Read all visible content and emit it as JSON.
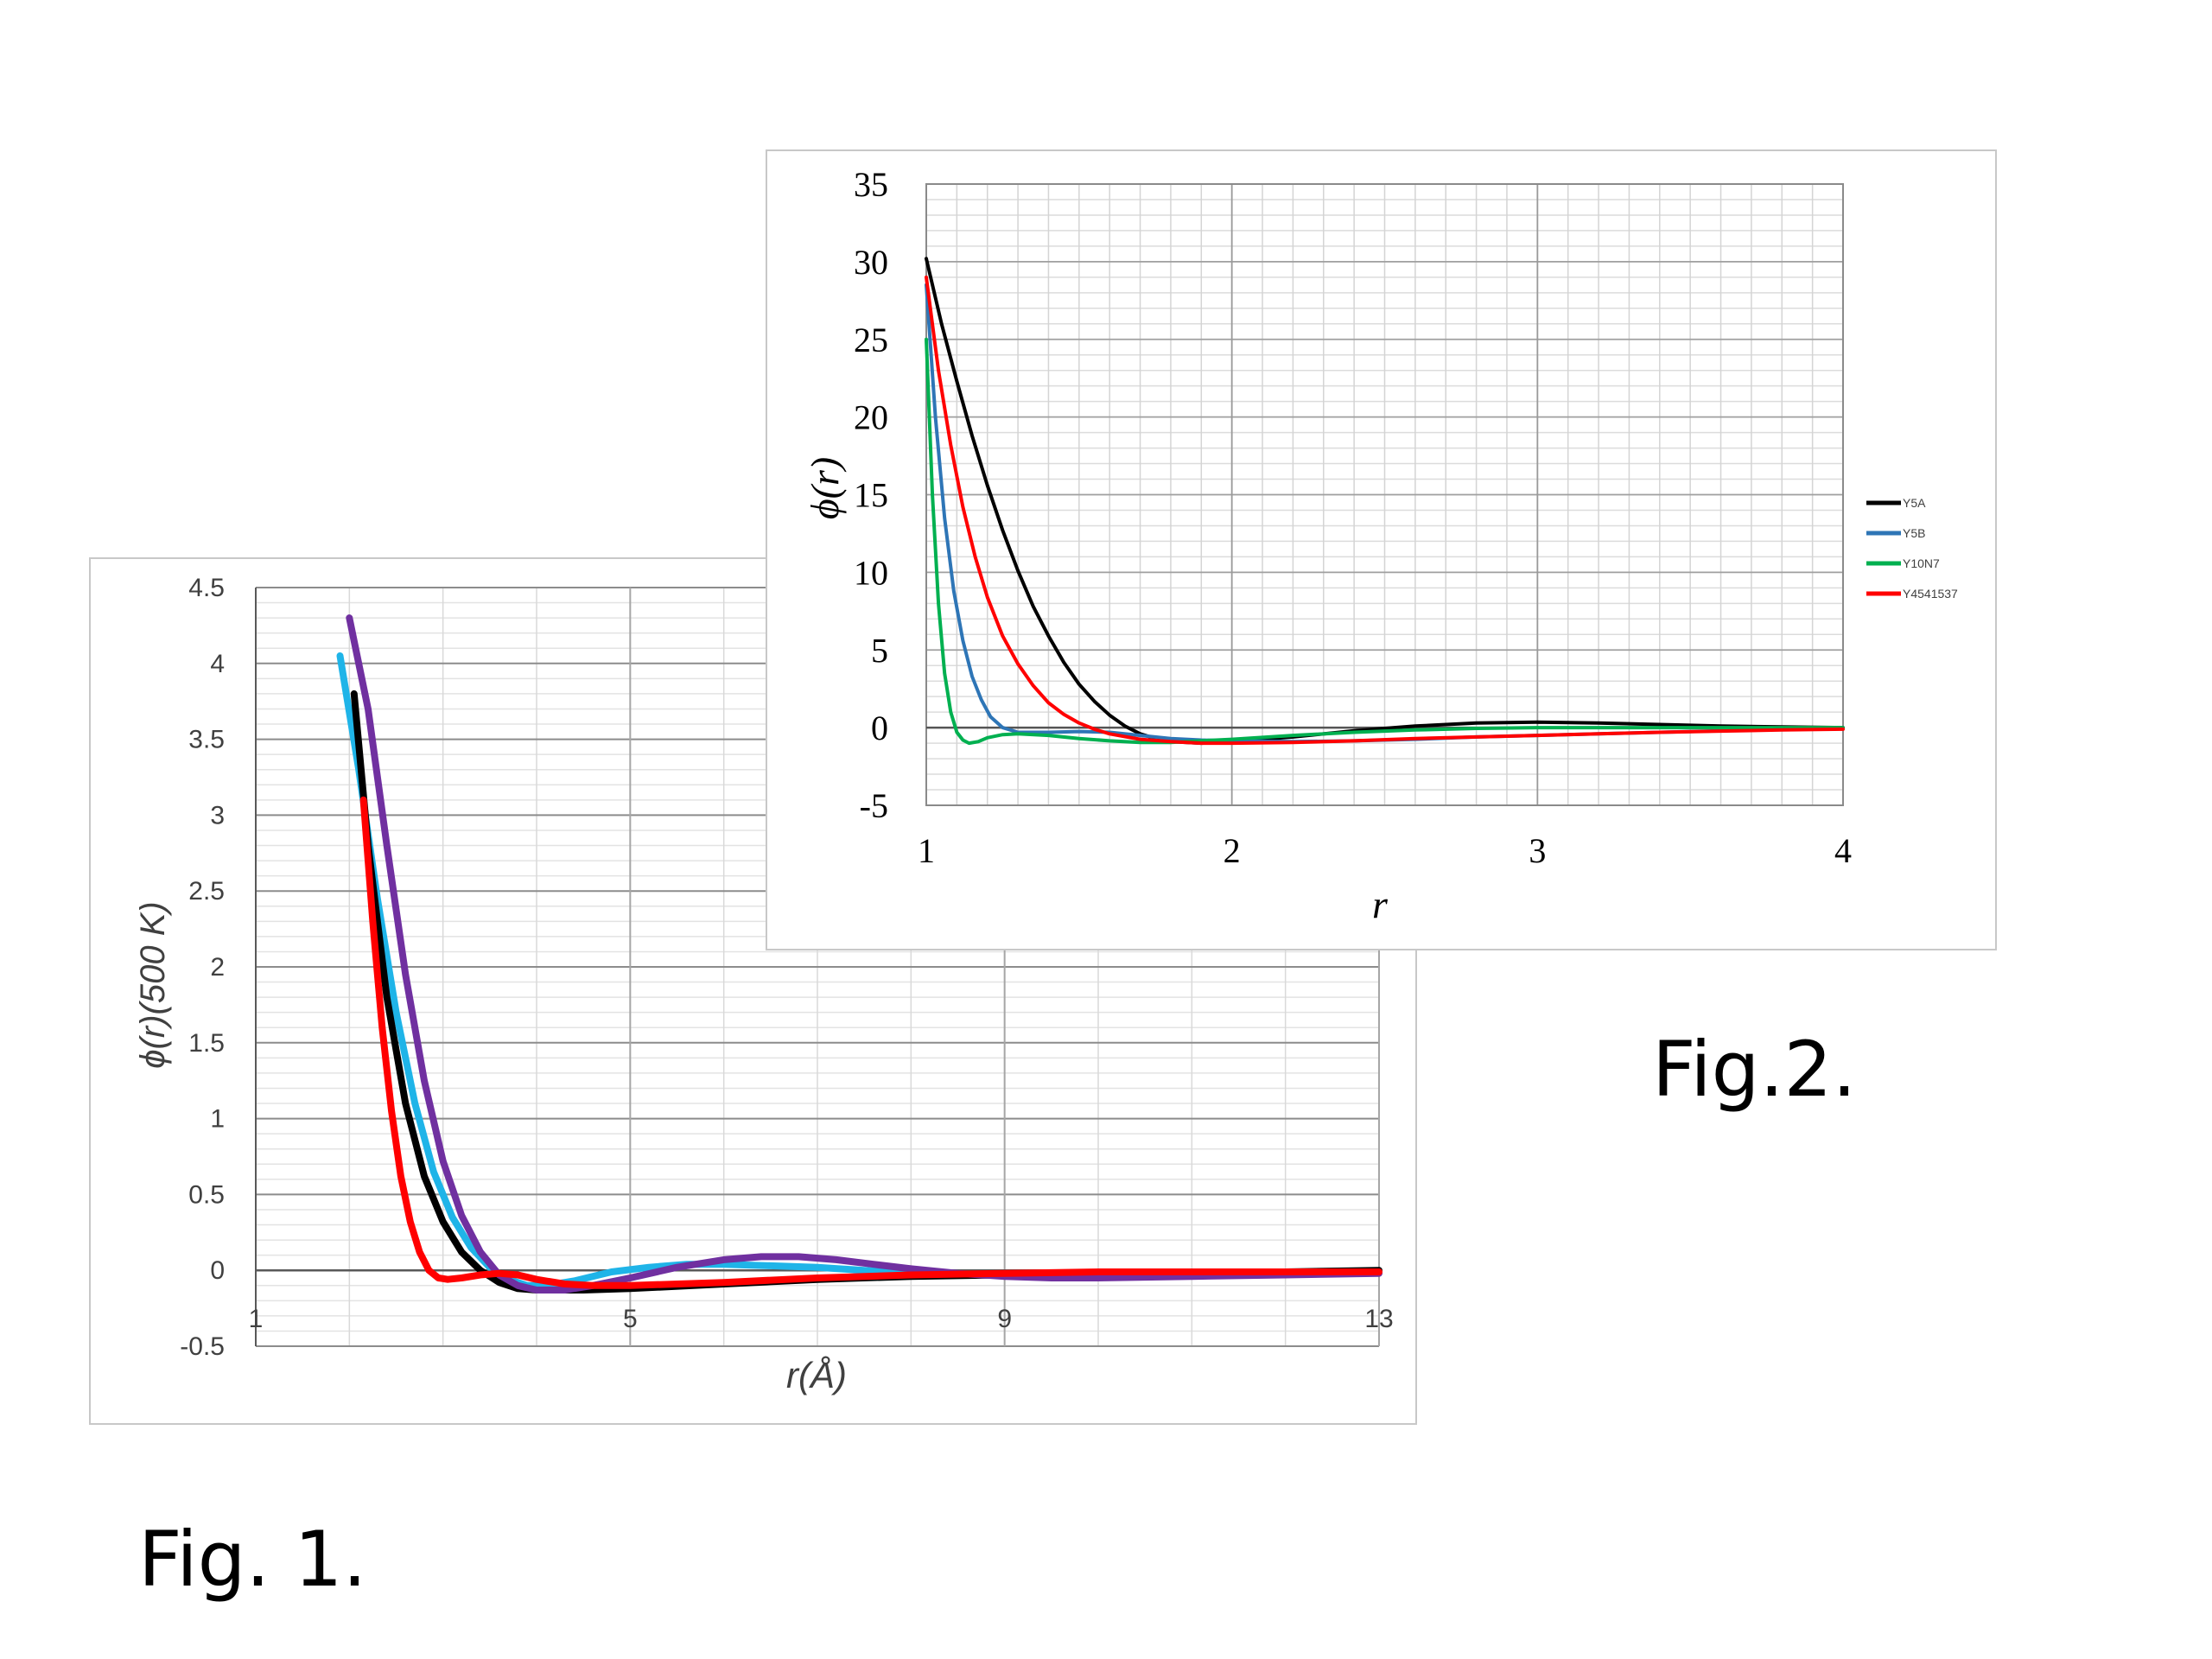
{
  "captions": {
    "fig1": "Fig. 1.",
    "fig2": "Fig.2."
  },
  "chart_data": [
    {
      "id": "fig1",
      "type": "line",
      "title": "",
      "xlabel": "r(Å)",
      "ylabel": "ϕ(r)(500 K)",
      "xlim": [
        1,
        13
      ],
      "ylim": [
        -0.5,
        4.5
      ],
      "x_ticks": [
        "1",
        "5",
        "9",
        "13"
      ],
      "y_ticks": [
        "4.5",
        "4",
        "3.5",
        "3",
        "2.5",
        "2",
        "1.5",
        "1",
        "0.5",
        "0",
        "-0.5"
      ],
      "grid": true,
      "series": [
        {
          "color": "#1fb4e8",
          "points": [
            [
              1.9,
              4.05
            ],
            [
              2.1,
              3.3
            ],
            [
              2.3,
              2.45
            ],
            [
              2.5,
              1.7
            ],
            [
              2.7,
              1.1
            ],
            [
              2.9,
              0.65
            ],
            [
              3.1,
              0.35
            ],
            [
              3.3,
              0.15
            ],
            [
              3.5,
              0.02
            ],
            [
              3.7,
              -0.06
            ],
            [
              3.9,
              -0.1
            ],
            [
              4.1,
              -0.1
            ],
            [
              4.4,
              -0.07
            ],
            [
              4.8,
              -0.01
            ],
            [
              5.2,
              0.02
            ],
            [
              5.6,
              0.04
            ],
            [
              6,
              0.04
            ],
            [
              6.5,
              0.03
            ],
            [
              7,
              0.02
            ],
            [
              7.5,
              0.0
            ],
            [
              8,
              -0.02
            ],
            [
              8.5,
              -0.03
            ],
            [
              9,
              -0.03
            ],
            [
              10,
              -0.02
            ],
            [
              11,
              -0.02
            ],
            [
              12,
              -0.01
            ],
            [
              13,
              -0.01
            ]
          ]
        },
        {
          "color": "#000000",
          "points": [
            [
              2.05,
              3.8
            ],
            [
              2.2,
              2.8
            ],
            [
              2.4,
              1.8
            ],
            [
              2.6,
              1.1
            ],
            [
              2.8,
              0.62
            ],
            [
              3,
              0.32
            ],
            [
              3.2,
              0.12
            ],
            [
              3.4,
              0.0
            ],
            [
              3.6,
              -0.08
            ],
            [
              3.8,
              -0.12
            ],
            [
              4,
              -0.13
            ],
            [
              4.5,
              -0.13
            ],
            [
              5,
              -0.12
            ],
            [
              6,
              -0.09
            ],
            [
              7,
              -0.06
            ],
            [
              8,
              -0.04
            ],
            [
              9,
              -0.03
            ],
            [
              10,
              -0.02
            ],
            [
              11,
              -0.02
            ],
            [
              12,
              -0.01
            ],
            [
              13,
              0.0
            ]
          ]
        },
        {
          "color": "#7030a0",
          "points": [
            [
              2,
              4.3
            ],
            [
              2.2,
              3.7
            ],
            [
              2.4,
              2.8
            ],
            [
              2.6,
              1.95
            ],
            [
              2.8,
              1.25
            ],
            [
              3,
              0.72
            ],
            [
              3.2,
              0.36
            ],
            [
              3.4,
              0.12
            ],
            [
              3.6,
              -0.03
            ],
            [
              3.8,
              -0.1
            ],
            [
              4,
              -0.13
            ],
            [
              4.3,
              -0.13
            ],
            [
              4.6,
              -0.1
            ],
            [
              5,
              -0.05
            ],
            [
              5.5,
              0.02
            ],
            [
              6,
              0.07
            ],
            [
              6.4,
              0.09
            ],
            [
              6.8,
              0.09
            ],
            [
              7.2,
              0.07
            ],
            [
              7.6,
              0.04
            ],
            [
              8,
              0.01
            ],
            [
              8.5,
              -0.02
            ],
            [
              9,
              -0.04
            ],
            [
              9.5,
              -0.05
            ],
            [
              10,
              -0.05
            ],
            [
              11,
              -0.04
            ],
            [
              12,
              -0.03
            ],
            [
              13,
              -0.02
            ]
          ]
        },
        {
          "color": "#ff0000",
          "points": [
            [
              2.15,
              3.1
            ],
            [
              2.25,
              2.3
            ],
            [
              2.35,
              1.6
            ],
            [
              2.45,
              1.05
            ],
            [
              2.55,
              0.62
            ],
            [
              2.65,
              0.32
            ],
            [
              2.75,
              0.12
            ],
            [
              2.85,
              0.0
            ],
            [
              2.95,
              -0.05
            ],
            [
              3.05,
              -0.06
            ],
            [
              3.2,
              -0.05
            ],
            [
              3.4,
              -0.03
            ],
            [
              3.6,
              -0.02
            ],
            [
              3.8,
              -0.03
            ],
            [
              4,
              -0.06
            ],
            [
              4.3,
              -0.09
            ],
            [
              4.6,
              -0.1
            ],
            [
              5,
              -0.1
            ],
            [
              6,
              -0.08
            ],
            [
              7,
              -0.05
            ],
            [
              8,
              -0.03
            ],
            [
              9,
              -0.02
            ],
            [
              10,
              -0.01
            ],
            [
              11,
              -0.01
            ],
            [
              12,
              -0.01
            ],
            [
              13,
              -0.01
            ]
          ]
        }
      ]
    },
    {
      "id": "fig2",
      "type": "line",
      "title": "",
      "xlabel": "r",
      "ylabel": "ϕ(r)",
      "xlim": [
        1,
        4
      ],
      "ylim": [
        -5,
        35
      ],
      "x_ticks": [
        "1",
        "2",
        "3",
        "4"
      ],
      "y_ticks": [
        "35",
        "30",
        "25",
        "20",
        "15",
        "10",
        "5",
        "0",
        "-5"
      ],
      "grid": true,
      "legend": {
        "position": "right",
        "entries": [
          "Y5A",
          "Y5B",
          "Y10N7",
          "Y4541537"
        ]
      },
      "series": [
        {
          "name": "Y5A",
          "color": "#000000",
          "points": [
            [
              1,
              30.2
            ],
            [
              1.05,
              26
            ],
            [
              1.1,
              22.3
            ],
            [
              1.15,
              18.8
            ],
            [
              1.2,
              15.6
            ],
            [
              1.25,
              12.7
            ],
            [
              1.3,
              10.1
            ],
            [
              1.35,
              7.8
            ],
            [
              1.4,
              5.9
            ],
            [
              1.45,
              4.2
            ],
            [
              1.5,
              2.8
            ],
            [
              1.55,
              1.7
            ],
            [
              1.6,
              0.8
            ],
            [
              1.65,
              0.1
            ],
            [
              1.7,
              -0.4
            ],
            [
              1.75,
              -0.7
            ],
            [
              1.8,
              -0.9
            ],
            [
              1.9,
              -1.0
            ],
            [
              2,
              -0.9
            ],
            [
              2.2,
              -0.6
            ],
            [
              2.4,
              -0.2
            ],
            [
              2.6,
              0.1
            ],
            [
              2.8,
              0.3
            ],
            [
              3,
              0.35
            ],
            [
              3.2,
              0.3
            ],
            [
              3.4,
              0.2
            ],
            [
              3.6,
              0.1
            ],
            [
              3.8,
              0.05
            ],
            [
              4,
              0.0
            ]
          ]
        },
        {
          "name": "Y5B",
          "color": "#2e75b6",
          "points": [
            [
              1,
              28.5
            ],
            [
              1.03,
              20
            ],
            [
              1.06,
              13.5
            ],
            [
              1.09,
              8.8
            ],
            [
              1.12,
              5.6
            ],
            [
              1.15,
              3.3
            ],
            [
              1.18,
              1.8
            ],
            [
              1.21,
              0.7
            ],
            [
              1.25,
              0.0
            ],
            [
              1.3,
              -0.3
            ],
            [
              1.4,
              -0.3
            ],
            [
              1.5,
              -0.25
            ],
            [
              1.6,
              -0.3
            ],
            [
              1.7,
              -0.5
            ],
            [
              1.8,
              -0.7
            ],
            [
              1.9,
              -0.8
            ],
            [
              2,
              -0.85
            ],
            [
              2.2,
              -0.9
            ],
            [
              2.4,
              -0.85
            ],
            [
              2.6,
              -0.75
            ],
            [
              2.8,
              -0.6
            ],
            [
              3,
              -0.5
            ],
            [
              3.2,
              -0.4
            ],
            [
              3.4,
              -0.3
            ],
            [
              3.6,
              -0.2
            ],
            [
              3.8,
              -0.1
            ],
            [
              4,
              -0.05
            ]
          ]
        },
        {
          "name": "Y10N7",
          "color": "#00b050",
          "points": [
            [
              1,
              25
            ],
            [
              1.02,
              15
            ],
            [
              1.04,
              8
            ],
            [
              1.06,
              3.5
            ],
            [
              1.08,
              1.0
            ],
            [
              1.1,
              -0.3
            ],
            [
              1.12,
              -0.8
            ],
            [
              1.14,
              -1.0
            ],
            [
              1.17,
              -0.9
            ],
            [
              1.2,
              -0.65
            ],
            [
              1.25,
              -0.45
            ],
            [
              1.3,
              -0.4
            ],
            [
              1.4,
              -0.5
            ],
            [
              1.5,
              -0.7
            ],
            [
              1.6,
              -0.85
            ],
            [
              1.7,
              -0.95
            ],
            [
              1.8,
              -0.95
            ],
            [
              1.9,
              -0.85
            ],
            [
              2,
              -0.75
            ],
            [
              2.2,
              -0.5
            ],
            [
              2.4,
              -0.3
            ],
            [
              2.6,
              -0.15
            ],
            [
              2.8,
              -0.05
            ],
            [
              3,
              0.0
            ],
            [
              3.2,
              0.0
            ],
            [
              3.4,
              0.0
            ],
            [
              3.6,
              0.0
            ],
            [
              3.8,
              0.0
            ],
            [
              4,
              0.0
            ]
          ]
        },
        {
          "name": "Y4541537",
          "color": "#ff0000",
          "points": [
            [
              1,
              29
            ],
            [
              1.04,
              23
            ],
            [
              1.08,
              18.2
            ],
            [
              1.12,
              14.2
            ],
            [
              1.16,
              11
            ],
            [
              1.2,
              8.4
            ],
            [
              1.25,
              5.9
            ],
            [
              1.3,
              4.1
            ],
            [
              1.35,
              2.7
            ],
            [
              1.4,
              1.6
            ],
            [
              1.45,
              0.85
            ],
            [
              1.5,
              0.3
            ],
            [
              1.55,
              -0.1
            ],
            [
              1.6,
              -0.4
            ],
            [
              1.7,
              -0.75
            ],
            [
              1.8,
              -0.9
            ],
            [
              1.9,
              -1.0
            ],
            [
              2,
              -1.0
            ],
            [
              2.2,
              -0.95
            ],
            [
              2.4,
              -0.85
            ],
            [
              2.6,
              -0.7
            ],
            [
              2.8,
              -0.6
            ],
            [
              3,
              -0.5
            ],
            [
              3.2,
              -0.4
            ],
            [
              3.4,
              -0.3
            ],
            [
              3.6,
              -0.22
            ],
            [
              3.8,
              -0.15
            ],
            [
              4,
              -0.1
            ]
          ]
        }
      ]
    }
  ]
}
